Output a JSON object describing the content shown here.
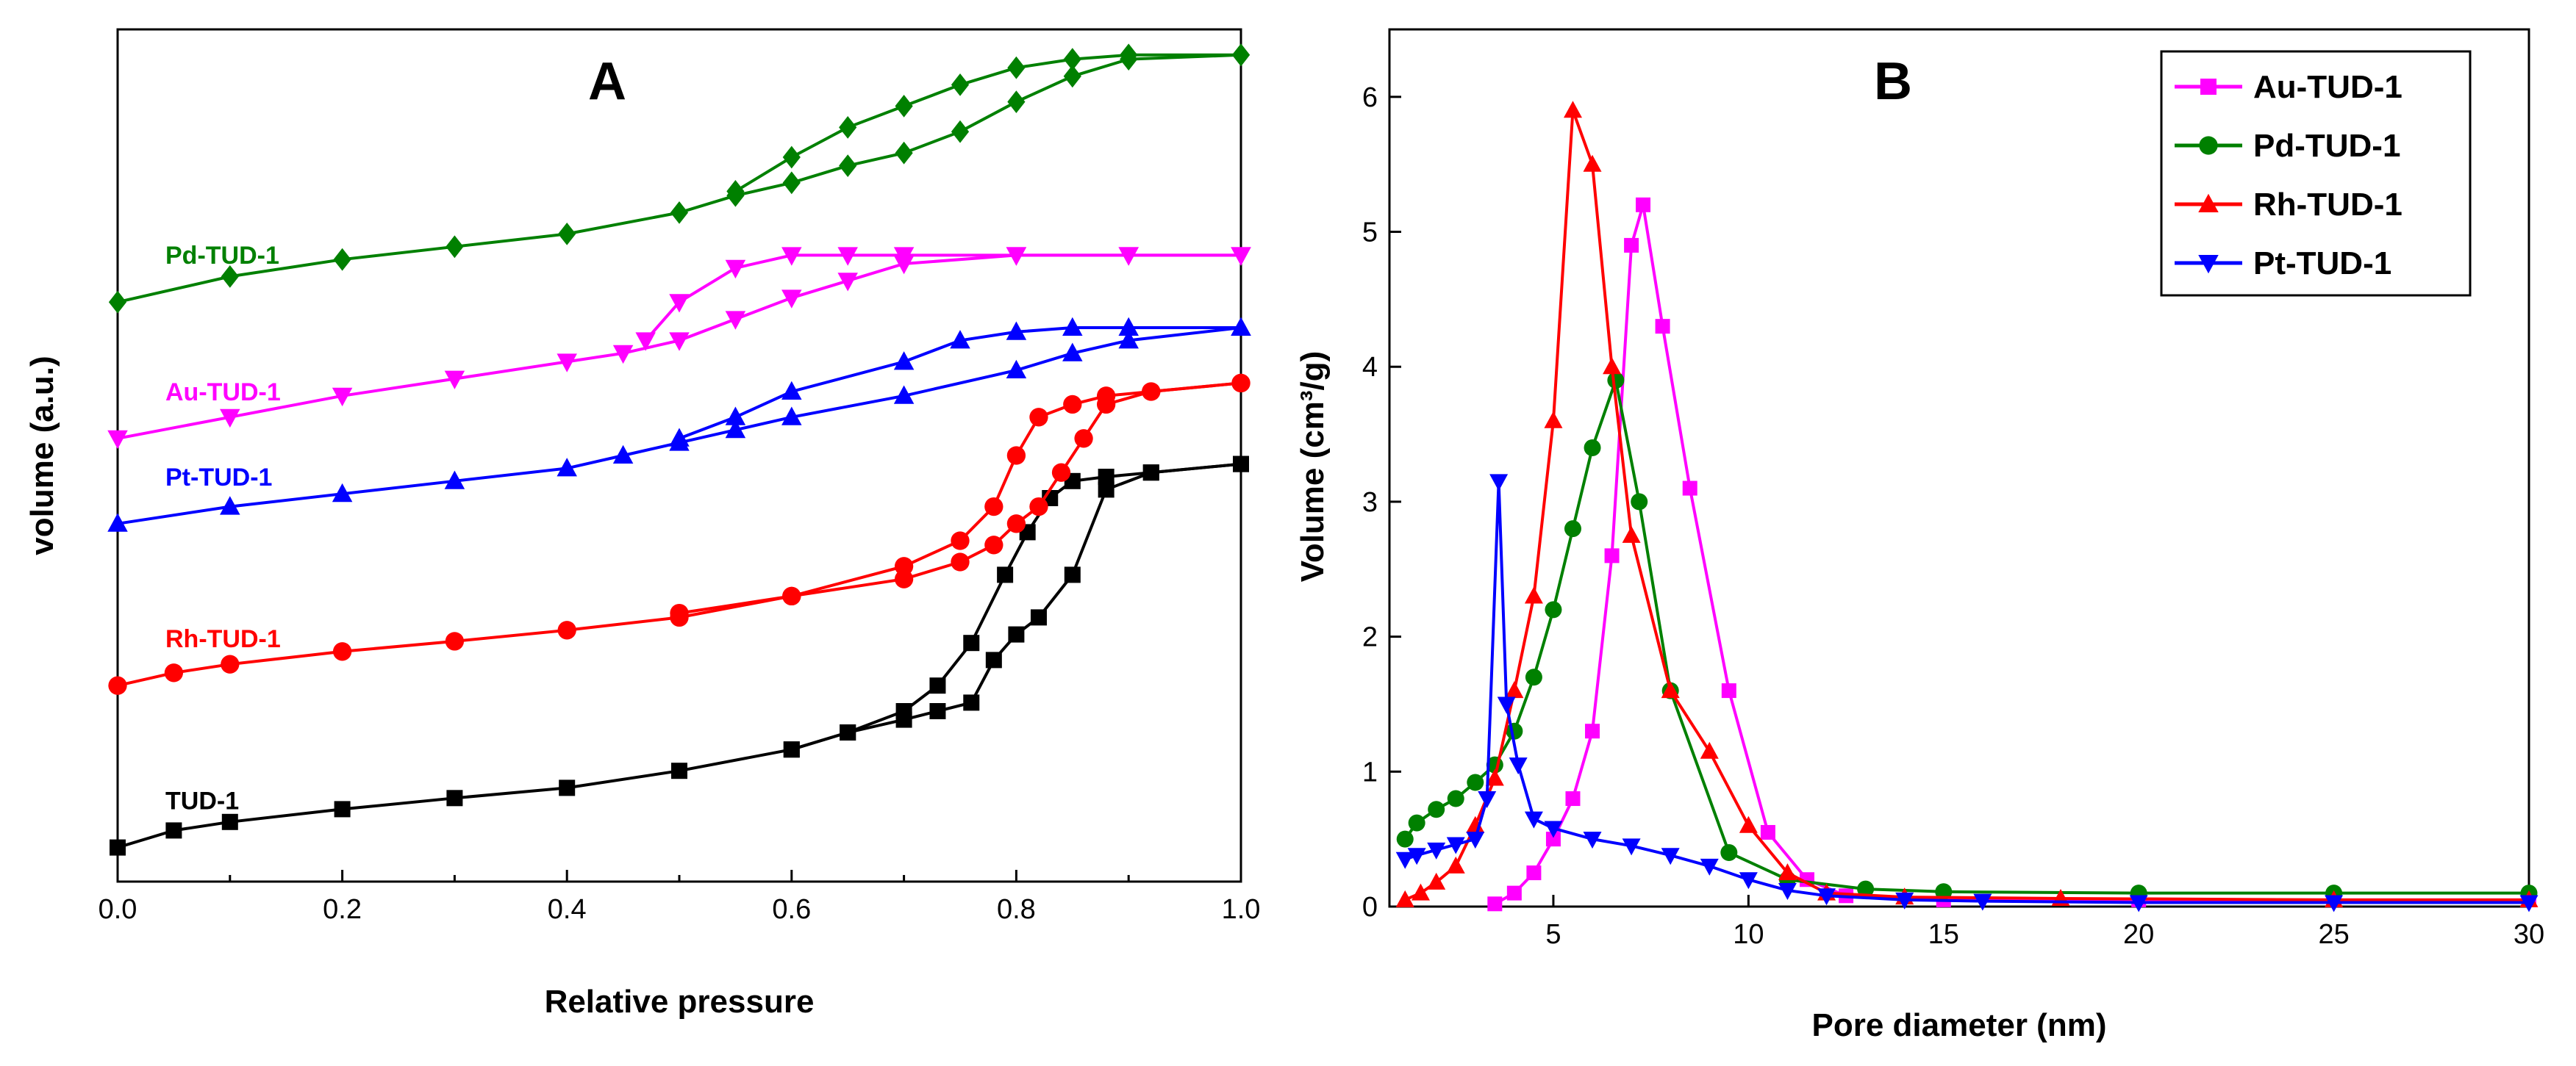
{
  "chart_data": [
    {
      "panel": "A",
      "type": "line",
      "title": "A",
      "xlabel": "Relative pressure",
      "ylabel": "volume (a.u.)",
      "xlim": [
        0.0,
        1.0
      ],
      "ylim": [
        0,
        100
      ],
      "xticks": [
        "0.0",
        "0.2",
        "0.4",
        "0.6",
        "0.8",
        "1.0"
      ],
      "yticks": [],
      "series": [
        {
          "name": "TUD-1",
          "color": "#000000",
          "marker": "square",
          "adsorption": {
            "x": [
              0.0,
              0.05,
              0.1,
              0.2,
              0.3,
              0.4,
              0.5,
              0.6,
              0.65,
              0.7,
              0.73,
              0.76,
              0.79,
              0.81,
              0.83,
              0.85,
              0.88,
              0.92,
              1.0
            ],
            "y": [
              4,
              6,
              7,
              8.5,
              9.8,
              11,
              13,
              15.5,
              17.5,
              20,
              23,
              28,
              36,
              41,
              45,
              47,
              47.5,
              48,
              49
            ]
          },
          "desorption": {
            "x": [
              1.0,
              0.92,
              0.88,
              0.85,
              0.82,
              0.8,
              0.78,
              0.76,
              0.73,
              0.7,
              0.65,
              0.6
            ],
            "y": [
              49,
              48,
              46,
              36,
              31,
              29,
              26,
              21,
              20,
              19,
              17.5,
              15.5
            ]
          }
        },
        {
          "name": "Rh-TUD-1",
          "color": "#ff0000",
          "marker": "circle",
          "adsorption": {
            "x": [
              0.0,
              0.05,
              0.1,
              0.2,
              0.3,
              0.4,
              0.5,
              0.6,
              0.7,
              0.75,
              0.78,
              0.8,
              0.82,
              0.85,
              0.88,
              0.92,
              1.0
            ],
            "y": [
              23,
              24.5,
              25.5,
              27,
              28.2,
              29.5,
              31,
              33.5,
              37,
              40,
              44,
              50,
              54.5,
              56,
              57,
              57.5,
              58.5
            ]
          },
          "desorption": {
            "x": [
              1.0,
              0.92,
              0.88,
              0.86,
              0.84,
              0.82,
              0.8,
              0.78,
              0.75,
              0.7,
              0.6,
              0.5
            ],
            "y": [
              58.5,
              57.5,
              56,
              52,
              48,
              44,
              42,
              39.5,
              37.5,
              35.5,
              33.5,
              31.5
            ]
          }
        },
        {
          "name": "Pt-TUD-1",
          "color": "#0000ff",
          "marker": "triangle-up",
          "adsorption": {
            "x": [
              0.0,
              0.1,
              0.2,
              0.3,
              0.4,
              0.45,
              0.5,
              0.55,
              0.6,
              0.7,
              0.8,
              0.85,
              0.9,
              1.0
            ],
            "y": [
              42,
              44,
              45.5,
              47,
              48.5,
              50,
              51.5,
              53,
              54.5,
              57,
              60,
              62,
              63.5,
              65
            ]
          },
          "desorption": {
            "x": [
              1.0,
              0.9,
              0.85,
              0.8,
              0.75,
              0.7,
              0.6,
              0.55,
              0.5
            ],
            "y": [
              65,
              65,
              65,
              64.5,
              63.5,
              61,
              57.5,
              54.5,
              52
            ]
          }
        },
        {
          "name": "Au-TUD-1",
          "color": "#ff00ff",
          "marker": "triangle-down",
          "adsorption": {
            "x": [
              0.0,
              0.1,
              0.2,
              0.3,
              0.4,
              0.45,
              0.5,
              0.55,
              0.6,
              0.65,
              0.7,
              0.8,
              0.9,
              1.0
            ],
            "y": [
              52,
              54.5,
              57,
              59,
              61,
              62,
              63.5,
              66,
              68.5,
              70.5,
              72.5,
              73.5,
              73.5,
              73.5
            ]
          },
          "desorption": {
            "x": [
              1.0,
              0.9,
              0.8,
              0.7,
              0.65,
              0.6,
              0.55,
              0.5,
              0.47
            ],
            "y": [
              73.5,
              73.5,
              73.5,
              73.5,
              73.5,
              73.5,
              72,
              68,
              63.5
            ]
          }
        },
        {
          "name": "Pd-TUD-1",
          "color": "#008000",
          "marker": "diamond",
          "adsorption": {
            "x": [
              0.0,
              0.1,
              0.2,
              0.3,
              0.4,
              0.5,
              0.55,
              0.6,
              0.65,
              0.7,
              0.75,
              0.8,
              0.85,
              0.9,
              1.0
            ],
            "y": [
              68,
              71,
              73,
              74.5,
              76,
              78.5,
              80.5,
              82,
              84,
              85.5,
              88,
              91.5,
              94.5,
              96.5,
              97
            ]
          },
          "desorption": {
            "x": [
              1.0,
              0.9,
              0.85,
              0.8,
              0.75,
              0.7,
              0.65,
              0.6,
              0.55
            ],
            "y": [
              97,
              97,
              96.5,
              95.5,
              93.5,
              91,
              88.5,
              85,
              81
            ]
          }
        }
      ]
    },
    {
      "panel": "B",
      "type": "line",
      "title": "B",
      "xlabel": "Pore diameter (nm)",
      "ylabel": "Volume (cm³/g)",
      "xlim": [
        0.8,
        30
      ],
      "ylim": [
        0,
        6.5
      ],
      "xticks": [
        5,
        10,
        15,
        20,
        25,
        30
      ],
      "yticks": [
        0,
        1,
        2,
        3,
        4,
        5,
        6
      ],
      "legend_position": "top-right",
      "series": [
        {
          "name": "Au-TUD-1",
          "color": "#ff00ff",
          "marker": "square",
          "x": [
            3.5,
            4,
            4.5,
            5,
            5.5,
            6,
            6.5,
            7,
            7.3,
            7.8,
            8.5,
            9.5,
            10.5,
            11.5,
            12.5,
            15,
            20,
            25,
            30
          ],
          "y": [
            0.02,
            0.1,
            0.25,
            0.5,
            0.8,
            1.3,
            2.6,
            4.9,
            5.2,
            4.3,
            3.1,
            1.6,
            0.55,
            0.2,
            0.08,
            0.05,
            0.05,
            0.05,
            0.05
          ]
        },
        {
          "name": "Pd-TUD-1",
          "color": "#008000",
          "marker": "circle",
          "x": [
            1.2,
            1.5,
            2,
            2.5,
            3,
            3.5,
            4,
            4.5,
            5,
            5.5,
            6,
            6.6,
            7.2,
            8,
            9.5,
            11,
            13,
            15,
            20,
            25,
            30
          ],
          "y": [
            0.5,
            0.62,
            0.72,
            0.8,
            0.92,
            1.05,
            1.3,
            1.7,
            2.2,
            2.8,
            3.4,
            3.9,
            3.0,
            1.6,
            0.4,
            0.2,
            0.13,
            0.11,
            0.1,
            0.1,
            0.1
          ]
        },
        {
          "name": "Rh-TUD-1",
          "color": "#ff0000",
          "marker": "triangle-up",
          "x": [
            1.2,
            1.6,
            2,
            2.5,
            3,
            3.5,
            4,
            4.5,
            5,
            5.5,
            6,
            6.5,
            7,
            8,
            9,
            10,
            11,
            12,
            14,
            18,
            25,
            30
          ],
          "y": [
            0.05,
            0.1,
            0.18,
            0.3,
            0.6,
            0.95,
            1.6,
            2.3,
            3.6,
            5.9,
            5.5,
            4.0,
            2.75,
            1.6,
            1.15,
            0.6,
            0.25,
            0.1,
            0.07,
            0.06,
            0.05,
            0.05
          ]
        },
        {
          "name": "Pt-TUD-1",
          "color": "#0000ff",
          "marker": "triangle-down",
          "x": [
            1.2,
            1.5,
            2,
            2.5,
            3,
            3.3,
            3.6,
            3.8,
            4.1,
            4.5,
            5,
            6,
            7,
            8,
            9,
            10,
            11,
            12,
            14,
            16,
            20,
            25,
            30
          ],
          "y": [
            0.35,
            0.38,
            0.42,
            0.46,
            0.5,
            0.8,
            3.15,
            1.5,
            1.05,
            0.65,
            0.58,
            0.5,
            0.45,
            0.38,
            0.3,
            0.2,
            0.12,
            0.08,
            0.05,
            0.04,
            0.03,
            0.03,
            0.03
          ]
        }
      ]
    }
  ]
}
